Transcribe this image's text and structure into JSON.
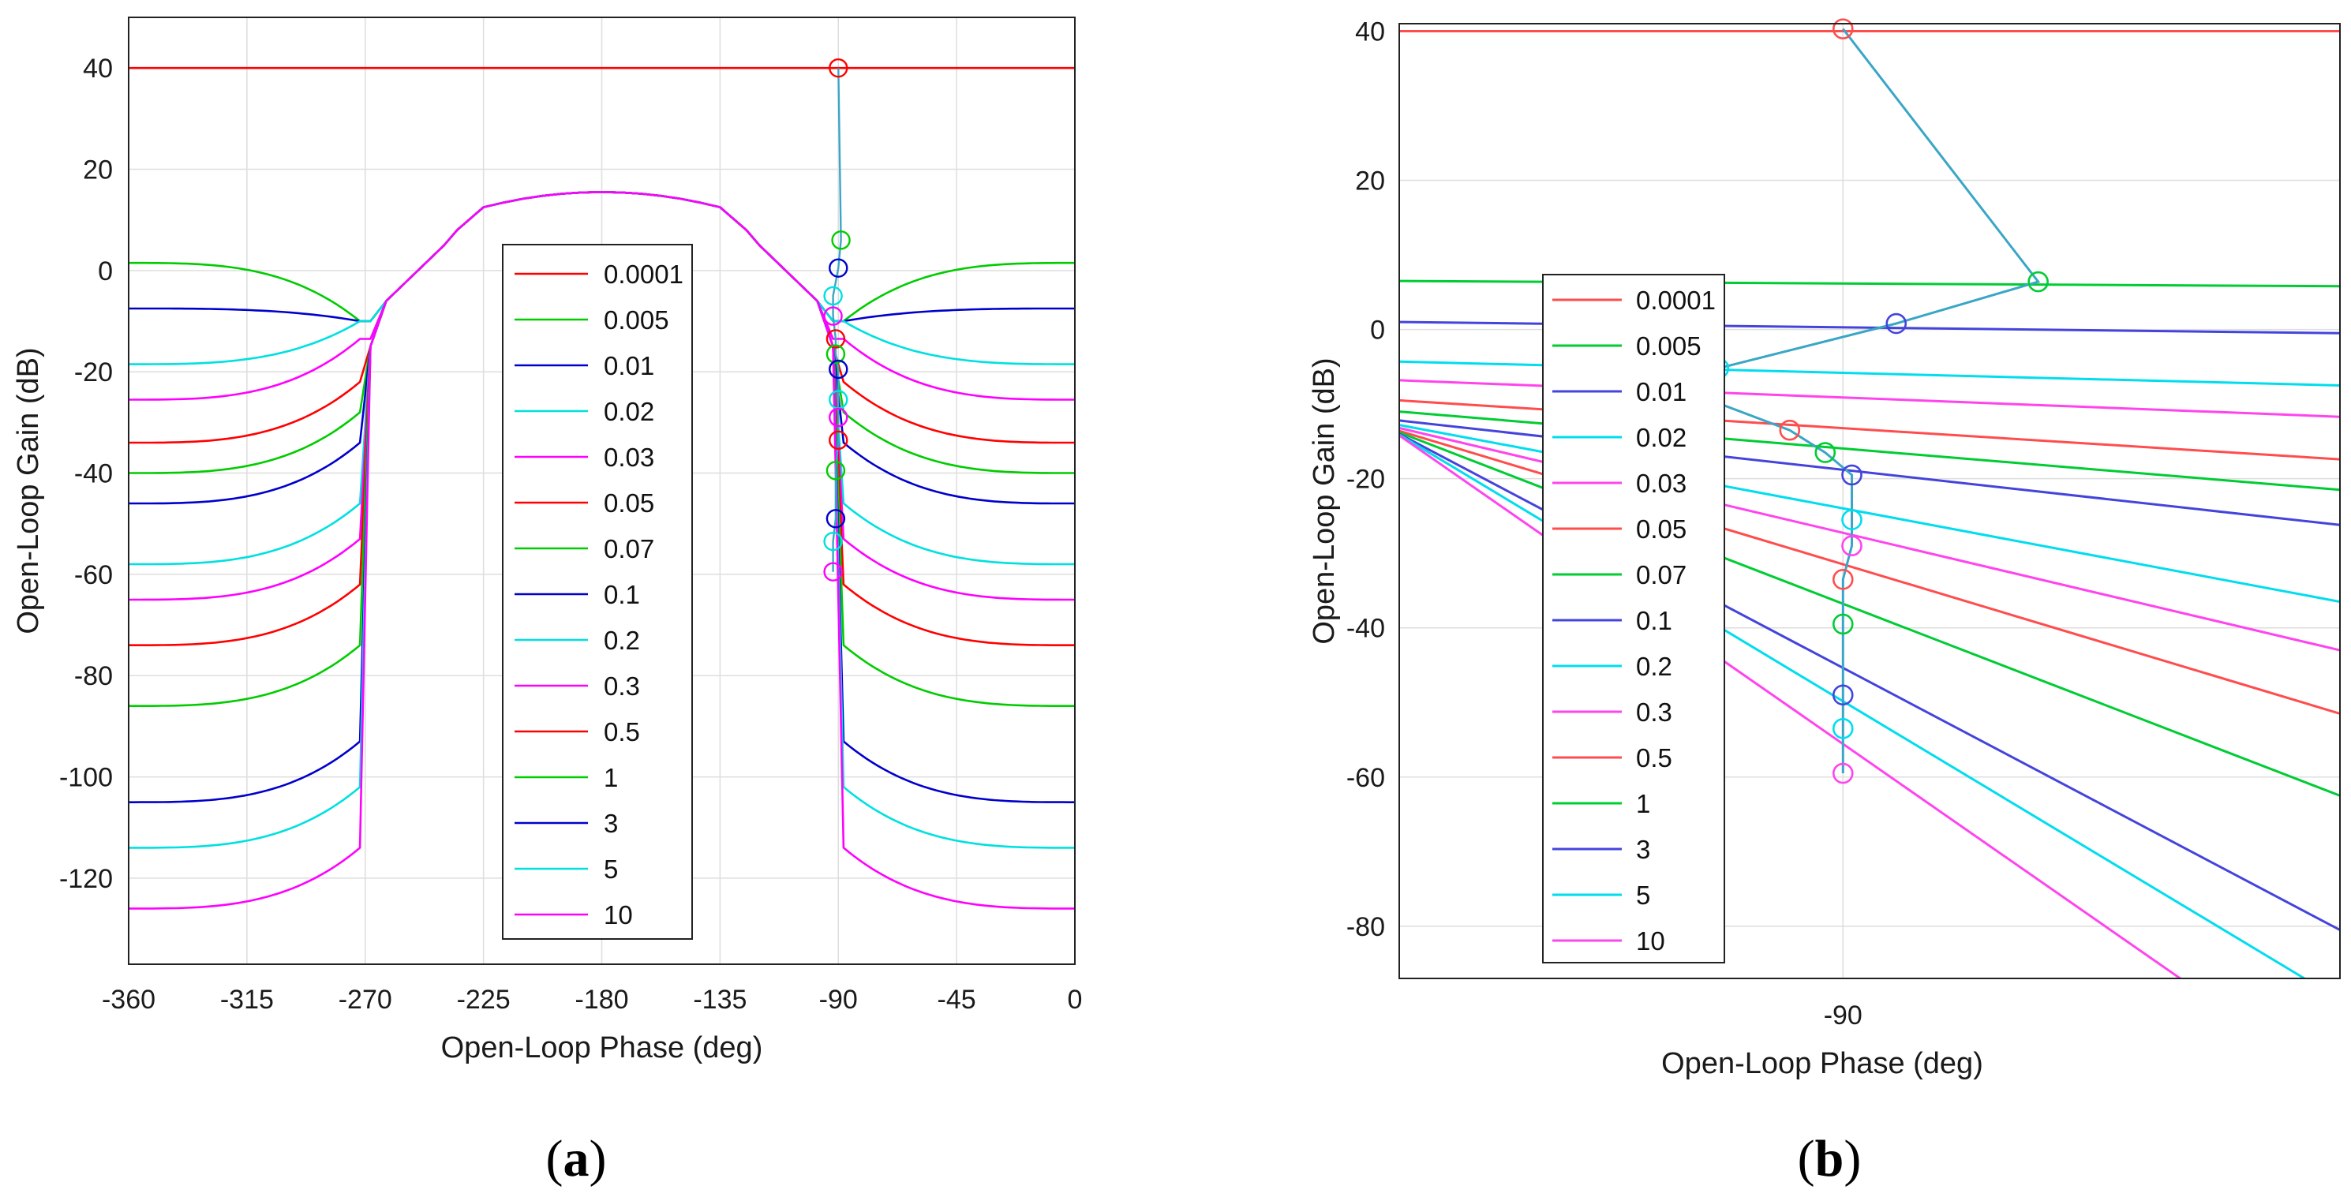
{
  "figure": {
    "captions": [
      {
        "open": "(",
        "letter": "a",
        "close": ")"
      },
      {
        "open": "(",
        "letter": "b",
        "close": ")"
      }
    ]
  },
  "chart_data": [
    {
      "type": "line",
      "panel": "a",
      "title": "",
      "xlabel": "Open-Loop Phase (deg)",
      "ylabel": "Open-Loop Gain (dB)",
      "xlim": [
        -360,
        0
      ],
      "ylim": [
        -137,
        50
      ],
      "xticks": [
        -360,
        -315,
        -270,
        -225,
        -180,
        -135,
        -90,
        -45,
        0
      ],
      "yticks": [
        40,
        20,
        0,
        -20,
        -40,
        -60,
        -80,
        -100,
        -120
      ],
      "grid": true,
      "legend_position": "center",
      "series": [
        {
          "name": "0.0001",
          "color": "#ff0000",
          "plateau": 40,
          "marker": [
            -90,
            40
          ]
        },
        {
          "name": "0.005",
          "color": "#00cc00",
          "plateau": 1.5,
          "marker": [
            -89,
            6
          ]
        },
        {
          "name": "0.01",
          "color": "#0000cc",
          "plateau": -7.5,
          "marker": [
            -90,
            0.5
          ]
        },
        {
          "name": "0.02",
          "color": "#00e0e0",
          "plateau": -18.5,
          "marker": [
            -92,
            -5
          ]
        },
        {
          "name": "0.03",
          "color": "#ff00ff",
          "plateau": -25.5,
          "marker": [
            -92,
            -9
          ]
        },
        {
          "name": "0.05",
          "color": "#ff0000",
          "plateau": -34,
          "marker": [
            -91,
            -13.5
          ]
        },
        {
          "name": "0.07",
          "color": "#00cc00",
          "plateau": -40,
          "marker": [
            -91,
            -16.5
          ]
        },
        {
          "name": "0.1",
          "color": "#0000cc",
          "plateau": -46,
          "marker": [
            -90,
            -19.5
          ]
        },
        {
          "name": "0.2",
          "color": "#00e0e0",
          "plateau": -58,
          "marker": [
            -90,
            -25.5
          ]
        },
        {
          "name": "0.3",
          "color": "#ff00ff",
          "plateau": -65,
          "marker": [
            -90,
            -29
          ]
        },
        {
          "name": "0.5",
          "color": "#ff0000",
          "plateau": -74,
          "marker": [
            -90,
            -33.5
          ]
        },
        {
          "name": "1",
          "color": "#00cc00",
          "plateau": -86,
          "marker": [
            -91,
            -39.5
          ]
        },
        {
          "name": "3",
          "color": "#0000cc",
          "plateau": -105,
          "marker": [
            -91,
            -49
          ]
        },
        {
          "name": "5",
          "color": "#00e0e0",
          "plateau": -114,
          "marker": [
            -92,
            -53.5
          ]
        },
        {
          "name": "10",
          "color": "#ff00ff",
          "plateau": -126,
          "marker": [
            -92,
            -59.5
          ]
        }
      ],
      "dome_peak": 15.5
    },
    {
      "type": "line",
      "panel": "b",
      "title": "",
      "xlabel": "Open-Loop Phase (deg)",
      "ylabel": "Open-Loop Gain (dB)",
      "xlim": [
        -92.5,
        -87.2
      ],
      "ylim": [
        -87,
        41
      ],
      "xticks": [
        -90
      ],
      "yticks": [
        40,
        20,
        0,
        -20,
        -40,
        -60,
        -80
      ],
      "grid": true,
      "legend_position": "left",
      "series": [
        {
          "name": "0.0001",
          "color": "#ff4d4d",
          "line": [
            [
              -92.5,
              40
            ],
            [
              -87.2,
              40
            ]
          ],
          "marker": [
            -90,
            40.3
          ]
        },
        {
          "name": "0.005",
          "color": "#00cc33",
          "line": [
            [
              -92.5,
              6.5
            ],
            [
              -87.2,
              5.8
            ]
          ],
          "marker": [
            -88.9,
            6.4
          ]
        },
        {
          "name": "0.01",
          "color": "#4444dd",
          "line": [
            [
              -92.5,
              1
            ],
            [
              -87.2,
              -0.5
            ]
          ],
          "marker": [
            -89.7,
            0.8
          ]
        },
        {
          "name": "0.02",
          "color": "#00ddee",
          "line": [
            [
              -92.5,
              -4.3
            ],
            [
              -87.2,
              -7.5
            ]
          ],
          "marker": [
            -90.7,
            -5.2
          ]
        },
        {
          "name": "0.03",
          "color": "#ff44ee",
          "line": [
            [
              -92.5,
              -6.8
            ],
            [
              -87.2,
              -11.7
            ]
          ],
          "marker": [
            -90.8,
            -9
          ]
        },
        {
          "name": "0.05",
          "color": "#ff4d4d",
          "line": [
            [
              -92.5,
              -9.5
            ],
            [
              -87.2,
              -17.4
            ]
          ],
          "marker": [
            -90.3,
            -13.5
          ]
        },
        {
          "name": "0.07",
          "color": "#00cc33",
          "line": [
            [
              -92.5,
              -11
            ],
            [
              -87.2,
              -21.5
            ]
          ],
          "marker": [
            -90.1,
            -16.5
          ]
        },
        {
          "name": "0.1",
          "color": "#4444dd",
          "line": [
            [
              -92.5,
              -12.2
            ],
            [
              -87.2,
              -26.2
            ]
          ],
          "marker": [
            -89.95,
            -19.5
          ]
        },
        {
          "name": "0.2",
          "color": "#00ddee",
          "line": [
            [
              -92.5,
              -12.8
            ],
            [
              -87.2,
              -36.5
            ]
          ],
          "marker": [
            -89.95,
            -25.5
          ]
        },
        {
          "name": "0.3",
          "color": "#ff44ee",
          "line": [
            [
              -92.5,
              -13.2
            ],
            [
              -87.2,
              -43
            ]
          ],
          "marker": [
            -89.95,
            -29
          ]
        },
        {
          "name": "0.5",
          "color": "#ff4d4d",
          "line": [
            [
              -92.5,
              -13.6
            ],
            [
              -87.2,
              -51.5
            ]
          ],
          "marker": [
            -90,
            -33.5
          ]
        },
        {
          "name": "1",
          "color": "#00cc33",
          "line": [
            [
              -92.5,
              -13.8
            ],
            [
              -87.2,
              -62.5
            ]
          ],
          "marker": [
            -90,
            -39.5
          ]
        },
        {
          "name": "3",
          "color": "#4444dd",
          "line": [
            [
              -92.5,
              -14
            ],
            [
              -87.2,
              -80.5
            ]
          ],
          "marker": [
            -90,
            -49
          ]
        },
        {
          "name": "5",
          "color": "#00ddee",
          "line": [
            [
              -92.5,
              -14.1
            ],
            [
              -87.4,
              -87
            ]
          ],
          "marker": [
            -90,
            -53.5
          ]
        },
        {
          "name": "10",
          "color": "#ff44ee",
          "line": [
            [
              -92.5,
              -14.2
            ],
            [
              -88.1,
              -87
            ]
          ],
          "marker": [
            -90,
            -59.5
          ]
        }
      ]
    }
  ]
}
